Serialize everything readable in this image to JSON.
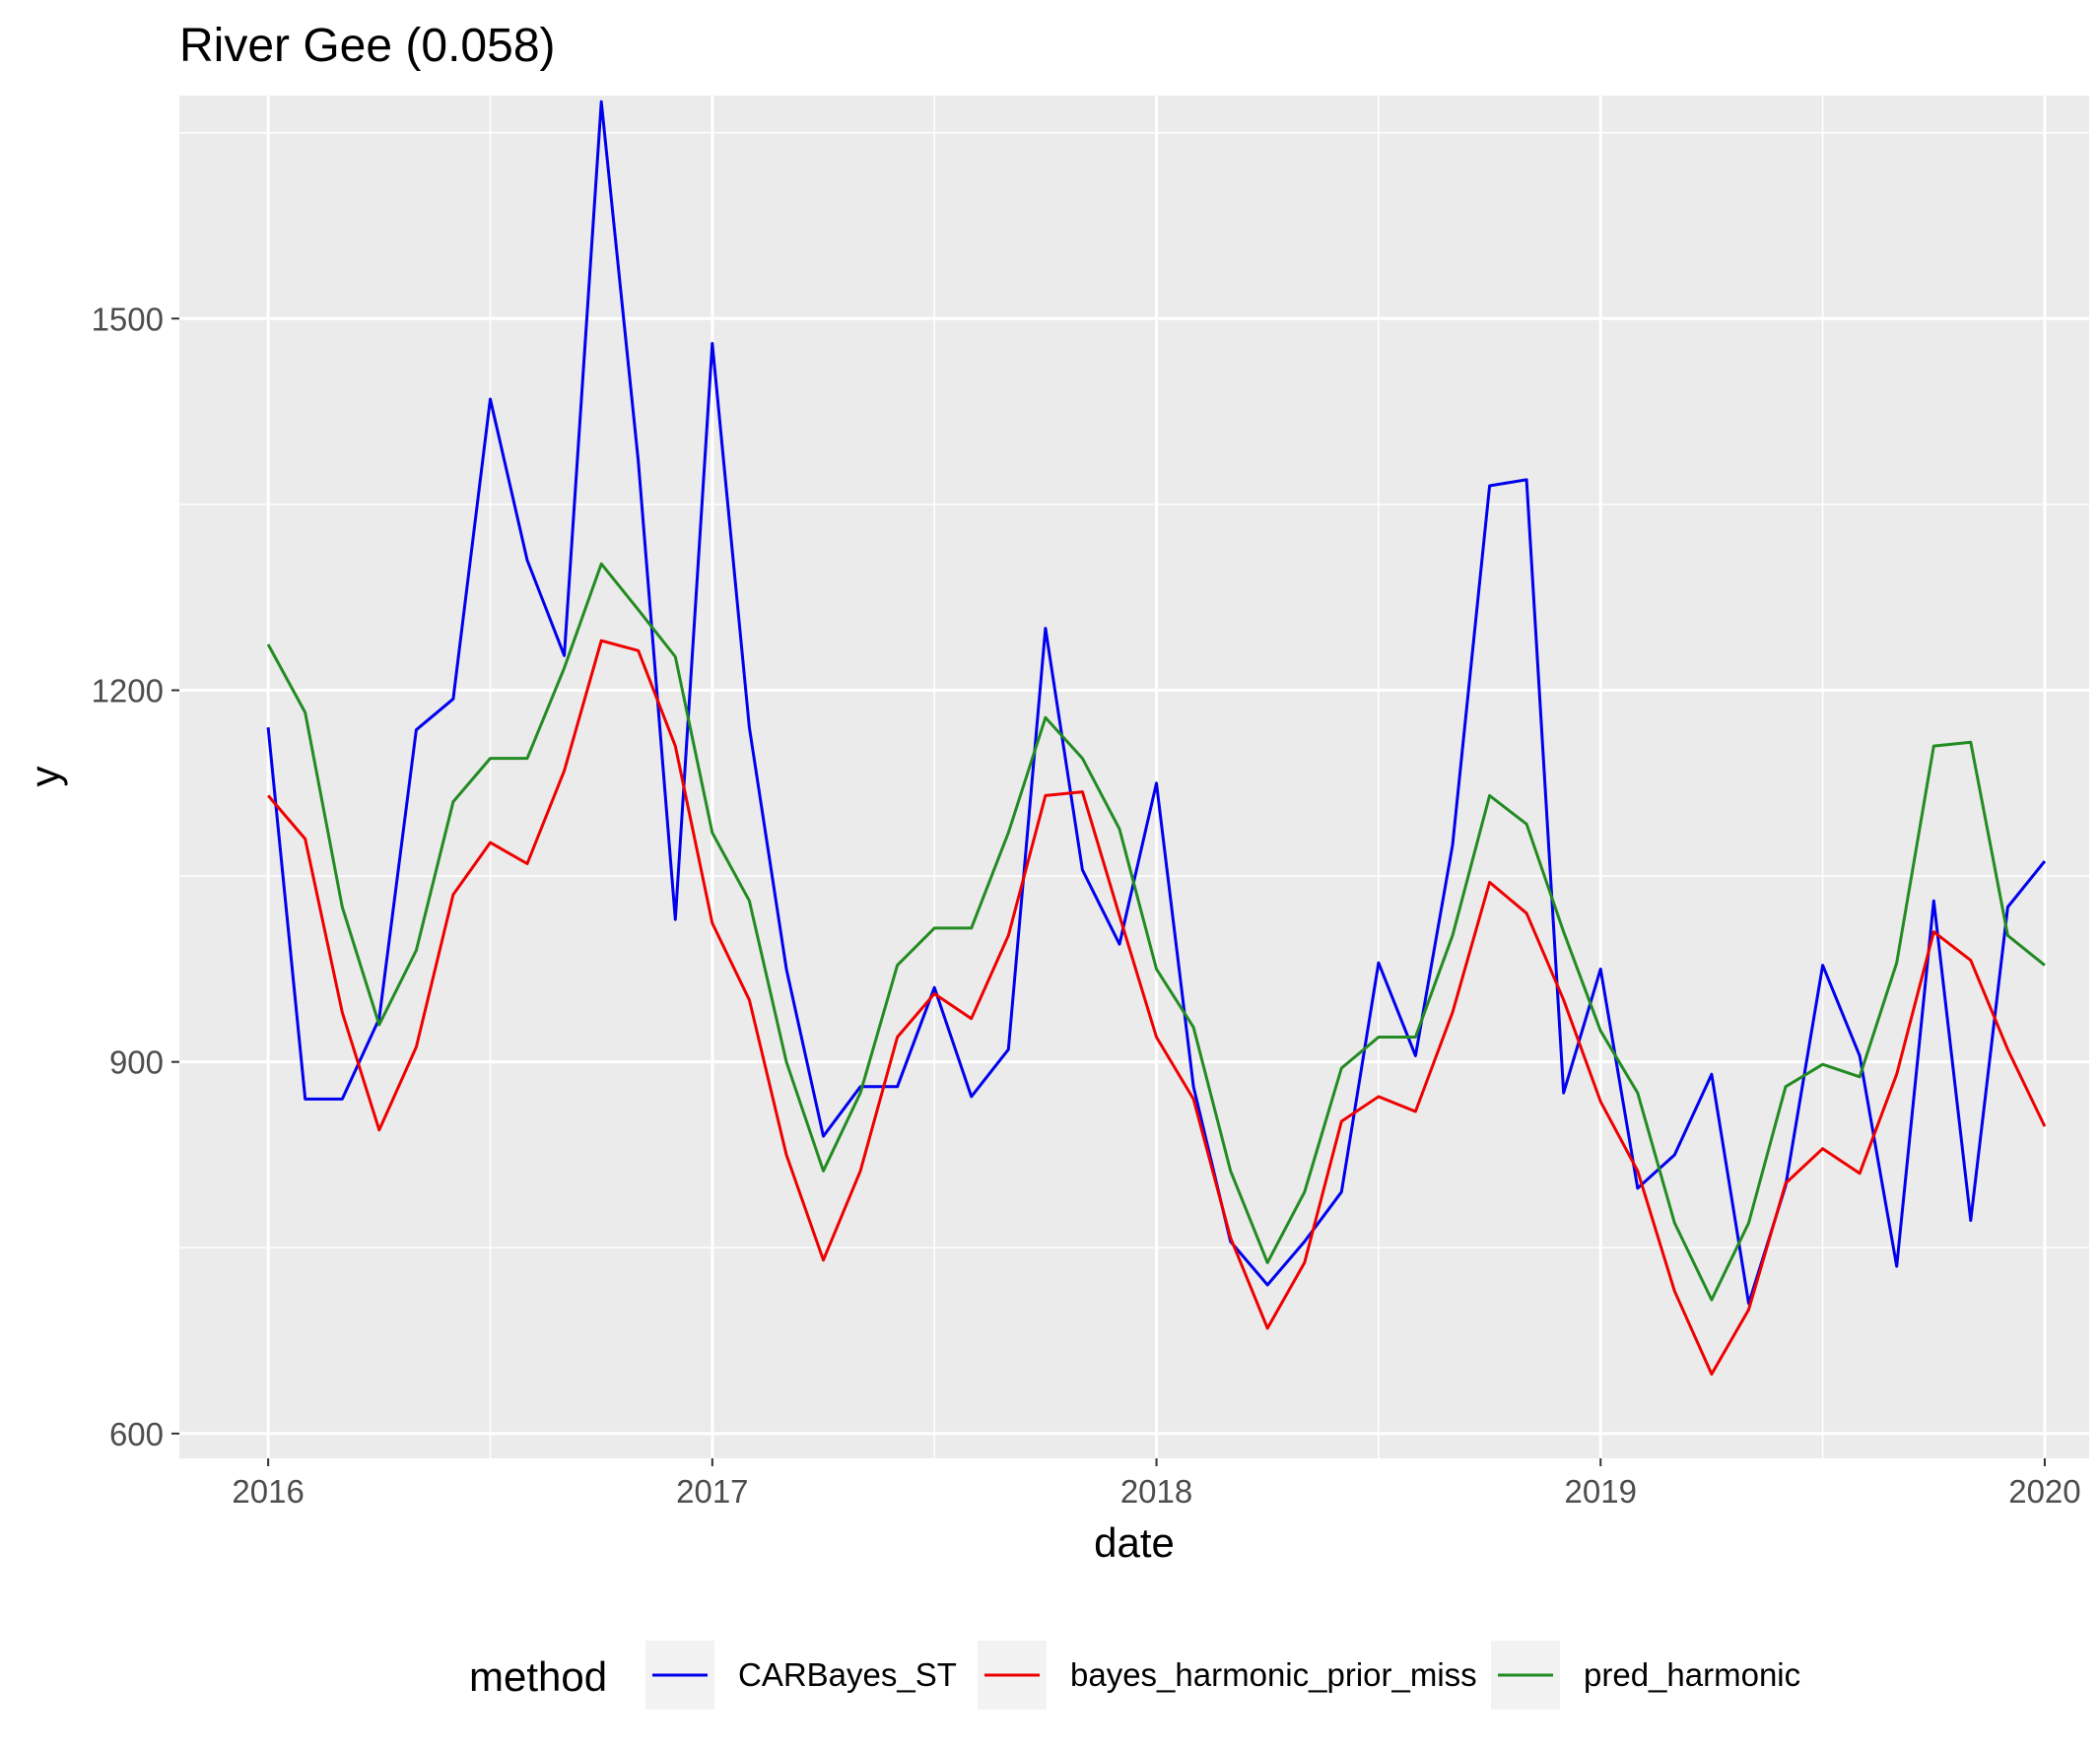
{
  "chart_data": {
    "type": "line",
    "title": "River Gee (0.058)",
    "xlabel": "date",
    "ylabel": "y",
    "xlim": [
      2015.8,
      2020.1
    ],
    "ylim": [
      580,
      1680
    ],
    "x_ticks": [
      2016,
      2017,
      2018,
      2019,
      2020
    ],
    "x_tick_labels": [
      "2016",
      "2017",
      "2018",
      "2019",
      "2020"
    ],
    "y_ticks": [
      600,
      900,
      1200,
      1500
    ],
    "y_tick_labels": [
      "600",
      "900",
      "1200",
      "1500"
    ],
    "y_minor_ticks": [
      750,
      1050,
      1350,
      1650
    ],
    "x_minor_ticks": [
      2016.5,
      2017.5,
      2018.5,
      2019.5
    ],
    "grid": true,
    "legend": {
      "title": "method",
      "position": "bottom"
    },
    "x_start": 2016,
    "x_step_months": 1,
    "series": [
      {
        "name": "CARBayes_ST",
        "color": "#0000ee",
        "values": [
          1170,
          870,
          870,
          935,
          1168,
          1193,
          1435,
          1305,
          1228,
          1675,
          1385,
          1015,
          1480,
          1170,
          975,
          840,
          880,
          880,
          960,
          872,
          910,
          1250,
          1055,
          995,
          1125,
          880,
          755,
          720,
          755,
          795,
          980,
          905,
          1075,
          1365,
          1370,
          875,
          975,
          798,
          825,
          890,
          705,
          800,
          978,
          905,
          735,
          1030,
          772,
          1025,
          1062
        ]
      },
      {
        "name": "bayes_harmonic_prior_miss",
        "color": "#ee0000",
        "values": [
          1115,
          1080,
          940,
          845,
          912,
          1035,
          1077,
          1060,
          1135,
          1240,
          1232,
          1155,
          1012,
          950,
          825,
          740,
          812,
          920,
          955,
          935,
          1002,
          1115,
          1118,
          1018,
          920,
          870,
          758,
          685,
          738,
          852,
          872,
          860,
          940,
          1045,
          1020,
          950,
          868,
          812,
          715,
          648,
          700,
          802,
          830,
          810,
          890,
          1005,
          982,
          910,
          848
        ]
      },
      {
        "name": "pred_harmonic",
        "color": "#228b22",
        "values": [
          1237,
          1182,
          1025,
          930,
          990,
          1110,
          1145,
          1145,
          1218,
          1302,
          1265,
          1227,
          1085,
          1030,
          900,
          812,
          875,
          978,
          1008,
          1008,
          1085,
          1178,
          1145,
          1088,
          975,
          928,
          812,
          738,
          795,
          895,
          920,
          920,
          1002,
          1115,
          1092,
          1005,
          925,
          875,
          770,
          708,
          770,
          880,
          898,
          888,
          980,
          1155,
          1158,
          1002,
          978
        ]
      }
    ]
  }
}
